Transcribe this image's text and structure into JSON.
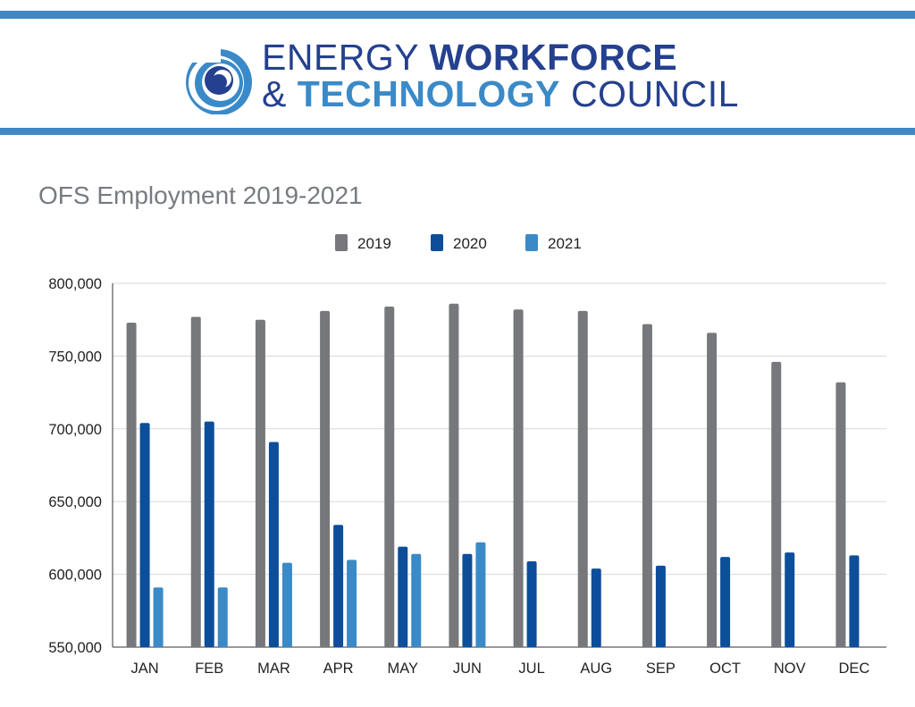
{
  "header": {
    "line1": {
      "part1": "ENERGY",
      "part2": "WORKFORCE"
    },
    "line2": {
      "part1": "& ",
      "part2": "TECHNOLOGY",
      "part3": " COUNCIL"
    }
  },
  "colors": {
    "accent_bar": "#3f88c5",
    "navy": "#24408e",
    "blue": "#3a8ac8",
    "grid": "#d9d9d9"
  },
  "chart_data": {
    "type": "bar",
    "title": "OFS Employment 2019-2021",
    "xlabel": "",
    "ylabel": "",
    "ylim": [
      550000,
      800000
    ],
    "yticks": [
      550000,
      600000,
      650000,
      700000,
      750000,
      800000
    ],
    "ytick_labels": [
      "550,000",
      "600,000",
      "650,000",
      "700,000",
      "750,000",
      "800,000"
    ],
    "categories": [
      "JAN",
      "FEB",
      "MAR",
      "APR",
      "MAY",
      "JUN",
      "JUL",
      "AUG",
      "SEP",
      "OCT",
      "NOV",
      "DEC"
    ],
    "legend_position": "top-center",
    "grid": true,
    "series": [
      {
        "name": "2019",
        "color": "#77787b",
        "values": [
          773000,
          777000,
          775000,
          781000,
          784000,
          786000,
          782000,
          781000,
          772000,
          766000,
          746000,
          732000
        ]
      },
      {
        "name": "2020",
        "color": "#0c4e9a",
        "values": [
          704000,
          705000,
          691000,
          634000,
          619000,
          614000,
          609000,
          604000,
          606000,
          612000,
          615000,
          613000
        ]
      },
      {
        "name": "2021",
        "color": "#3a8ac8",
        "values": [
          591000,
          591000,
          608000,
          610000,
          614000,
          622000,
          null,
          null,
          null,
          null,
          null,
          null
        ]
      }
    ]
  }
}
